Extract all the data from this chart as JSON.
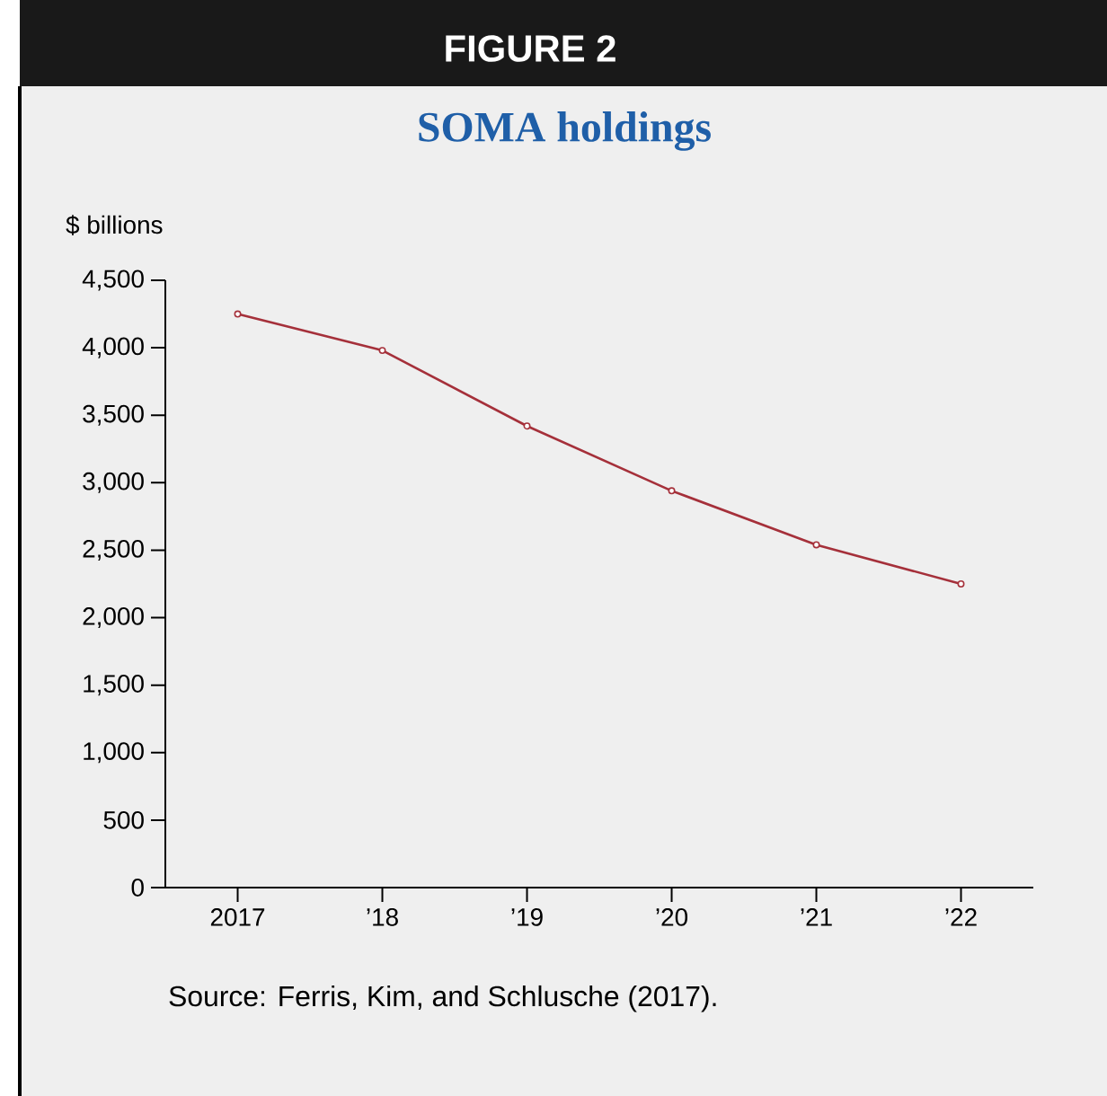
{
  "chart_data": {
    "type": "line",
    "title": "FIGURE 2",
    "subtitle": "SOMA holdings",
    "ylabel": "$ billions",
    "categories": [
      "2017",
      "’18",
      "’19",
      "’20",
      "’21",
      "’22"
    ],
    "series": [
      {
        "color": "#a5303a",
        "values": [
          4250,
          3980,
          3420,
          2940,
          2540,
          2250
        ]
      }
    ],
    "ylim": [
      0,
      4500
    ],
    "yticks": [
      0,
      500,
      {
        "value": 1000,
        "label": "1,000"
      },
      {
        "value": 1500,
        "label": "1,500"
      },
      {
        "value": 2000,
        "label": "2,000"
      },
      {
        "value": 2500,
        "label": "2,500"
      },
      {
        "value": 3000,
        "label": "3,000"
      },
      {
        "value": 3500,
        "label": "3,500"
      },
      {
        "value": 4000,
        "label": "4,000"
      },
      {
        "value": 4500,
        "label": "4,500"
      }
    ],
    "marker": "circle",
    "line_style": "solid",
    "annotations": [
      "Source: Ferris, Kim, and Schlusche (2017)."
    ]
  }
}
